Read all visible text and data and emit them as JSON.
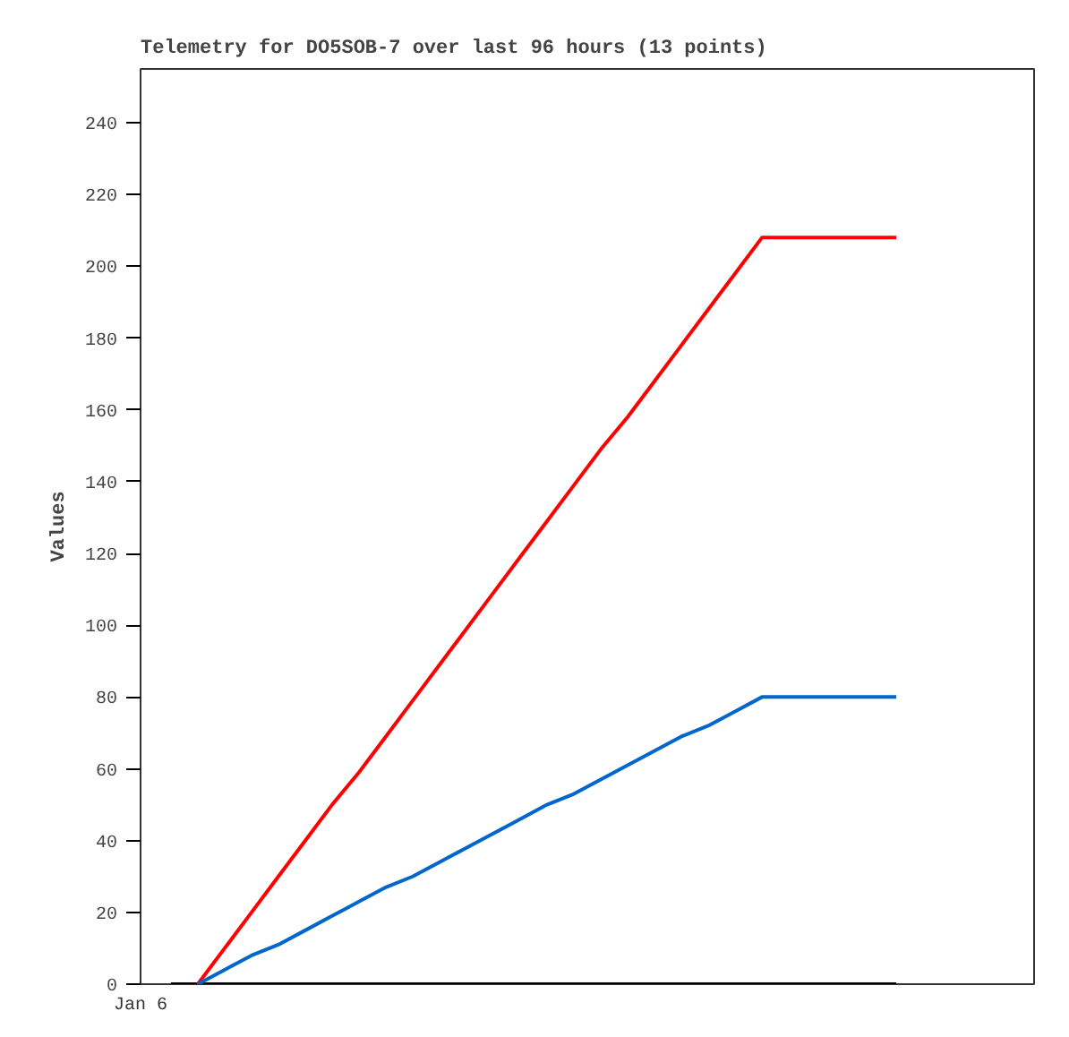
{
  "chart_data": {
    "type": "line",
    "title": "Telemetry for DO5SOB-7 over last 96 hours (13 points)",
    "ylabel": "Values",
    "annotations": [
      "Jan 6"
    ],
    "categories": [
      null,
      null,
      null,
      null,
      null,
      null,
      null,
      null,
      null,
      null,
      null,
      null,
      null,
      null,
      null,
      null,
      null,
      null,
      null,
      null,
      null,
      null,
      null,
      null,
      null,
      null,
      null,
      null
    ],
    "ylim": [
      0,
      255
    ],
    "yticks": [
      0,
      20,
      40,
      60,
      80,
      100,
      120,
      140,
      160,
      180,
      200,
      220,
      240
    ],
    "grid": false,
    "marker": "none",
    "line_style": "solid",
    "series": [
      {
        "color": "#000000",
        "values": [
          0,
          0,
          0,
          0,
          0,
          0,
          0,
          0,
          0,
          0,
          0,
          0,
          0,
          0,
          0,
          0,
          0,
          0,
          0,
          0,
          0,
          0,
          0,
          0,
          0,
          0,
          0,
          0
        ]
      },
      {
        "color": "#ff0000",
        "values": [
          null,
          0,
          10,
          20,
          30,
          40,
          50,
          59,
          69,
          79,
          89,
          99,
          109,
          119,
          129,
          139,
          149,
          158,
          168,
          178,
          188,
          198,
          208,
          208,
          208,
          208,
          208,
          208
        ]
      },
      {
        "color": "#0066cc",
        "values": [
          null,
          0,
          4,
          8,
          11,
          15,
          19,
          23,
          27,
          30,
          34,
          38,
          42,
          46,
          50,
          53,
          57,
          61,
          65,
          69,
          72,
          76,
          80,
          80,
          80,
          80,
          80,
          80
        ]
      }
    ]
  }
}
